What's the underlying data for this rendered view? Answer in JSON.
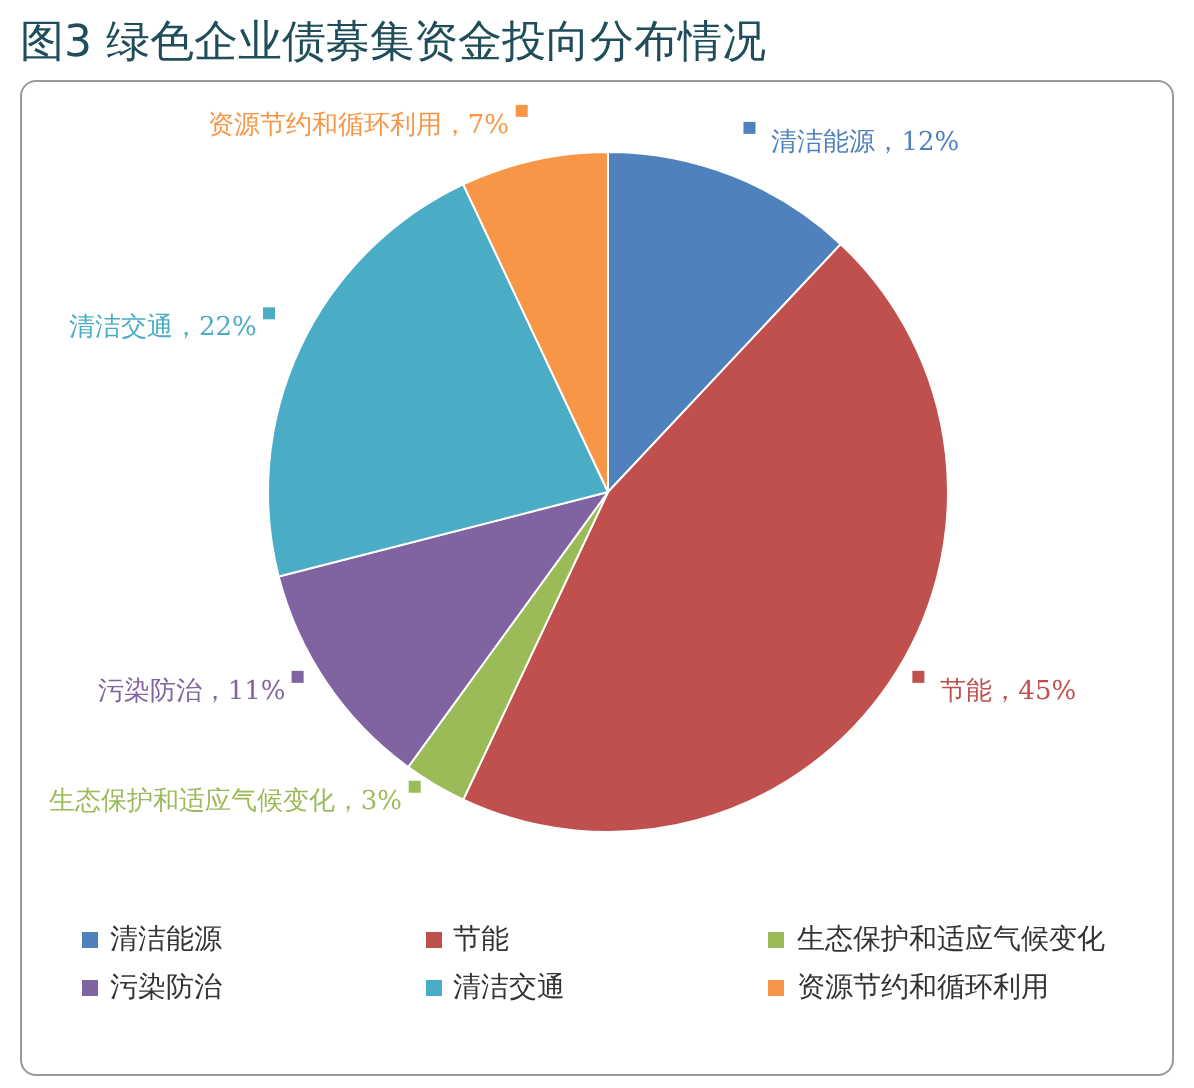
{
  "chart_data": {
    "type": "pie",
    "title": "图3  绿色企业债募集资金投向分布情况",
    "categories": [
      "清洁能源",
      "节能",
      "生态保护和适应气候变化",
      "污染防治",
      "清洁交通",
      "资源节约和循环利用"
    ],
    "values": [
      12,
      45,
      3,
      11,
      22,
      7
    ],
    "colors": [
      "#4f81bd",
      "#c0504d",
      "#9bbb59",
      "#8064a2",
      "#4bacc6",
      "#f79646"
    ],
    "value_labels": [
      "，12%",
      "，45%",
      "，3%",
      "，11%",
      "，22%",
      "，7%"
    ],
    "legend": "bottom"
  }
}
